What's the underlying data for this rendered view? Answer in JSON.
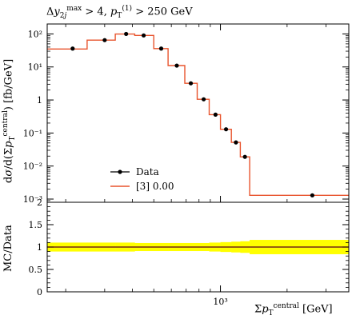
{
  "chart_data": [
    {
      "type": "line",
      "panel": "main",
      "title_text": "Δy_2j^max > 4, p_T^(1) > 250 GeV",
      "xlabel_text": "Σp_T^central [GeV]",
      "ylabel_text": "dσ/d(Σp_T^central) [fb/GeV]",
      "xscale": "log",
      "yscale": "log",
      "ylim": [
        0.0008,
        200
      ],
      "y_ticks": [
        0.001,
        0.01,
        0.1,
        1,
        10,
        100
      ],
      "y_tick_labels": [
        "10⁻³",
        "10⁻²",
        "10⁻¹",
        "1",
        "10¹",
        "10²"
      ],
      "x_ticks": [
        1000
      ],
      "x_tick_labels": [
        "10³"
      ],
      "legend": {
        "position": "bottom-left",
        "entries": [
          "Data",
          "[3] 0.00"
        ]
      },
      "series": [
        {
          "name": "Data",
          "style": "markers",
          "color": "#000000",
          "x": [
            215,
            300,
            375,
            450,
            540,
            635,
            735,
            840,
            950,
            1060,
            1175,
            1290,
            2600
          ],
          "y": [
            36,
            65,
            100,
            90,
            36,
            11,
            3.2,
            1.05,
            0.36,
            0.13,
            0.052,
            0.019,
            0.0013
          ]
        },
        {
          "name": "[3] 0.00",
          "style": "step",
          "color": "#e8542d",
          "edges": [
            165,
            250,
            335,
            410,
            500,
            580,
            690,
            785,
            890,
            1000,
            1120,
            1230,
            1355,
            3800
          ],
          "values": [
            35,
            65,
            99,
            90,
            36,
            11,
            3.2,
            1.05,
            0.36,
            0.13,
            0.052,
            0.019,
            0.0013
          ]
        }
      ]
    },
    {
      "type": "area",
      "panel": "ratio",
      "ylabel_text": "MC/Data",
      "ylim": [
        0,
        2
      ],
      "y_ticks": [
        0,
        0.5,
        1,
        1.5,
        2
      ],
      "y_tick_labels": [
        "0",
        "0.5",
        "1",
        "1.5",
        "2"
      ],
      "ratio": 1.0,
      "band_color": "#ffff00",
      "band_edges": [
        165,
        250,
        335,
        410,
        500,
        580,
        690,
        785,
        890,
        1000,
        1120,
        1230,
        1355,
        3800
      ],
      "band_halfwidth": [
        0.1,
        0.1,
        0.1,
        0.09,
        0.09,
        0.09,
        0.09,
        0.09,
        0.1,
        0.11,
        0.12,
        0.13,
        0.16
      ]
    }
  ]
}
